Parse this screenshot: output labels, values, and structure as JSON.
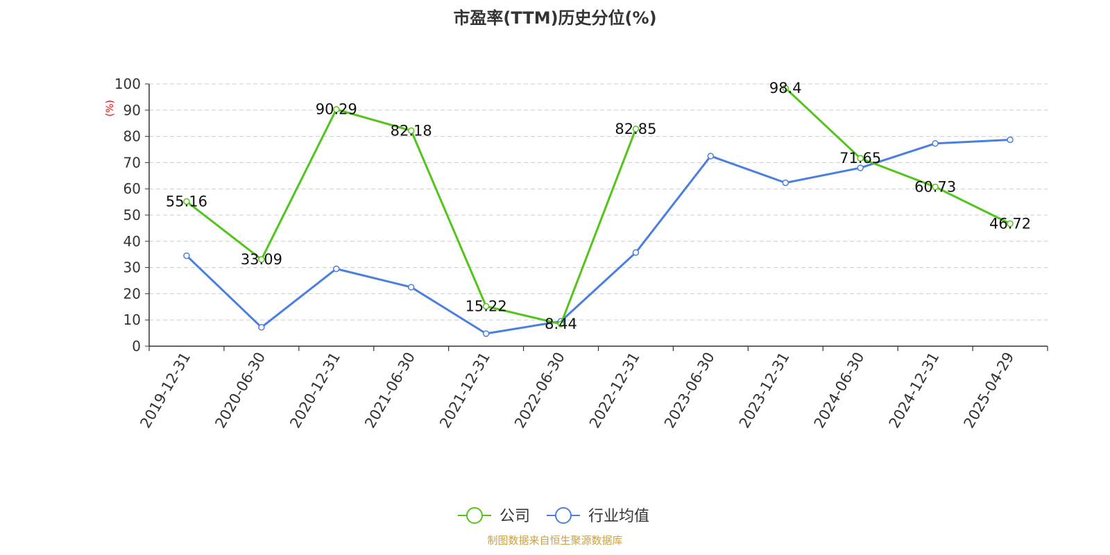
{
  "chart_data": {
    "type": "line",
    "title": "市盈率(TTM)历史分位(%)",
    "ylabel": "(%)",
    "ylim": [
      0,
      100
    ],
    "yticks": [
      0,
      10,
      20,
      30,
      40,
      50,
      60,
      70,
      80,
      90,
      100
    ],
    "categories": [
      "2019-12-31",
      "2020-06-30",
      "2020-12-31",
      "2021-06-30",
      "2021-12-31",
      "2022-06-30",
      "2022-12-31",
      "2023-06-30",
      "2023-12-31",
      "2024-06-30",
      "2024-12-31",
      "2025-04-29"
    ],
    "series": [
      {
        "name": "公司",
        "color": "#52c41a",
        "values": [
          55.16,
          33.09,
          90.29,
          82.18,
          15.22,
          8.44,
          82.85,
          null,
          98.4,
          71.65,
          60.73,
          46.72
        ],
        "labels_shown": true
      },
      {
        "name": "行业均值",
        "color": "#4a7fe0",
        "values": [
          34.5,
          7.2,
          29.5,
          22.5,
          4.8,
          9.5,
          35.7,
          72.5,
          62.3,
          68.0,
          77.3,
          78.7
        ],
        "labels_shown": false
      }
    ],
    "grid": true,
    "legend": "bottom-center"
  },
  "footer": {
    "source": "制图数据来自恒生聚源数据库",
    "color": "#c8a046"
  },
  "colors": {
    "axis": "#333333",
    "grid": "#cccccc",
    "ylabel": "#ff0000"
  }
}
